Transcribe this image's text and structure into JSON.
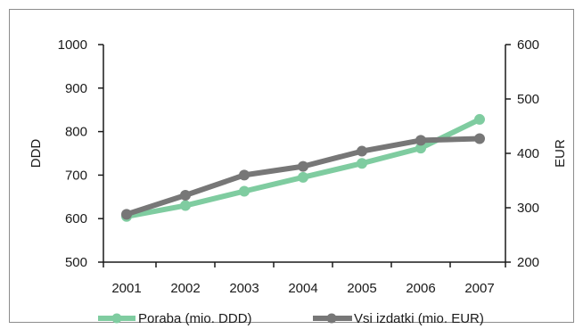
{
  "colors": {
    "consumption": "#7fcca0",
    "expenditure": "#777777",
    "axis": "#1a1a1a",
    "frame": "#8c8c8c"
  },
  "chart_data": {
    "type": "line",
    "title": "",
    "xlabel": "",
    "categories": [
      "2001",
      "2002",
      "2003",
      "2004",
      "2005",
      "2006",
      "2007"
    ],
    "y_left": {
      "label": "DDD",
      "lim": [
        500,
        1000
      ],
      "ticks": [
        "500",
        "600",
        "700",
        "800",
        "900",
        "1000"
      ]
    },
    "y_right": {
      "label": "EUR",
      "lim": [
        200,
        600
      ],
      "ticks": [
        "200",
        "300",
        "400",
        "500",
        "600"
      ]
    },
    "grid": false,
    "legend_position": "bottom",
    "series": [
      {
        "name": "Poraba (mio. DDD)",
        "axis": "left",
        "color": "#7fcca0",
        "values": [
          605,
          630,
          663,
          695,
          727,
          762,
          828
        ]
      },
      {
        "name": "Vsi izdatki (mio. EUR)",
        "axis": "right",
        "color": "#777777",
        "values": [
          288,
          323,
          360,
          376,
          404,
          424,
          427
        ]
      }
    ]
  }
}
